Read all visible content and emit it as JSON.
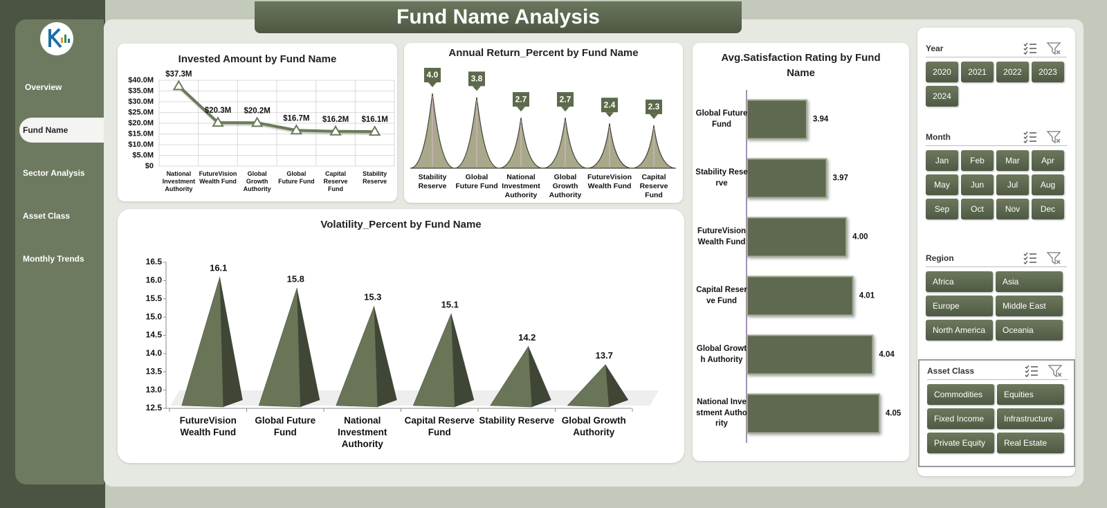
{
  "header": {
    "title": "Fund Name Analysis"
  },
  "nav": {
    "items": [
      "Overview",
      "Fund Name",
      "Sector Analysis",
      "Asset Class",
      "Monthly Trends"
    ],
    "active": 1
  },
  "slicers": [
    {
      "title": "Year",
      "items": [
        "2020",
        "2021",
        "2022",
        "2023",
        "2024"
      ]
    },
    {
      "title": "Month",
      "items": [
        "Jan",
        "Feb",
        "Mar",
        "Apr",
        "May",
        "Jun",
        "Jul",
        "Aug",
        "Sep",
        "Oct",
        "Nov",
        "Dec"
      ]
    },
    {
      "title": "Region",
      "items": [
        "Africa",
        "Asia",
        "Europe",
        "Middle East",
        "North America",
        "Oceania"
      ]
    },
    {
      "title": "Asset Class",
      "items": [
        "Commodities",
        "Equities",
        "Fixed Income",
        "Infrastructure",
        "Private Equity",
        "Real Estate"
      ]
    }
  ],
  "chart_data": [
    {
      "type": "line",
      "title": "Invested Amount by Fund Name",
      "categories": [
        "National Investment Authority",
        "FutureVision Wealth Fund",
        "Global Growth Authority",
        "Global Future Fund",
        "Capital Reserve Fund",
        "Stability Reserve"
      ],
      "values": [
        37300000,
        20300000,
        20200000,
        16700000,
        16200000,
        16100000
      ],
      "value_labels": [
        "$37.3M",
        "$20.3M",
        "$20.2M",
        "$16.7M",
        "$16.2M",
        "$16.1M"
      ],
      "ylim": [
        0,
        40000000
      ],
      "yticks": [
        {
          "value": 0,
          "label": "$0"
        },
        {
          "value": 5000000,
          "label": "$5.0M"
        },
        {
          "value": 10000000,
          "label": "$10.0M"
        },
        {
          "value": 15000000,
          "label": "$15.0M"
        },
        {
          "value": 20000000,
          "label": "$20.0M"
        },
        {
          "value": 25000000,
          "label": "$25.0M"
        },
        {
          "value": 30000000,
          "label": "$30.0M"
        },
        {
          "value": 35000000,
          "label": "$35.0M"
        },
        {
          "value": 40000000,
          "label": "$40.0M"
        }
      ],
      "grid": true,
      "color": "#6b7a58"
    },
    {
      "type": "spike",
      "title": "Annual Return_Percent by Fund Name",
      "categories": [
        "Stability Reserve",
        "Global Future Fund",
        "National Investment Authority",
        "Global Growth Authority",
        "FutureVision Wealth Fund",
        "Capital Reserve Fund"
      ],
      "values": [
        4.0,
        3.8,
        2.7,
        2.7,
        2.4,
        2.3
      ],
      "value_labels": [
        "4.0",
        "3.8",
        "2.7",
        "2.7",
        "2.4",
        "2.3"
      ],
      "color": "#aaa88b"
    },
    {
      "type": "pyramid",
      "title": "Volatility_Percent by Fund Name",
      "categories": [
        "FutureVision Wealth Fund",
        "Global Future Fund",
        "National Investment Authority",
        "Capital Reserve Fund",
        "Stability Reserve",
        "Global Growth Authority"
      ],
      "values": [
        16.1,
        15.8,
        15.3,
        15.1,
        14.2,
        13.7
      ],
      "ylim": [
        12.5,
        16.5
      ],
      "yticks": [
        12.5,
        {
          "value": 13,
          "label": "13.0"
        },
        13.5,
        {
          "value": 14,
          "label": "14.0"
        },
        14.5,
        {
          "value": 15,
          "label": "15.0"
        },
        15.5,
        {
          "value": 16,
          "label": "16.0"
        },
        16.5
      ],
      "color": "#6a7558"
    },
    {
      "type": "bar",
      "orientation": "horizontal",
      "title": "Avg.Satisfaction Rating by Fund Name",
      "categories": [
        "Global Future Fund",
        "Stability Reserve",
        "FutureVision Wealth Fund",
        "Capital Reserve Fund",
        "Global Growth Authority",
        "National Investment Authority"
      ],
      "values": [
        3.94,
        3.97,
        4.0,
        4.01,
        4.04,
        4.05
      ],
      "value_labels": [
        "3.94",
        "3.97",
        "4.00",
        "4.01",
        "4.04",
        "4.05"
      ],
      "xlim": [
        3.85,
        4.07
      ],
      "color": "#5e6950"
    }
  ]
}
